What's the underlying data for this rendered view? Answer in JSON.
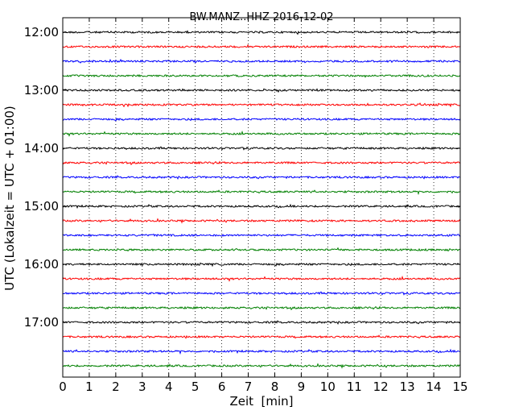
{
  "chart_data": {
    "type": "line",
    "title": "BW.MANZ..HHZ 2016-12-02",
    "xlabel": "Zeit  [min]",
    "ylabel": "UTC (Lokalzeit = UTC + 01:00)",
    "xlim": [
      0,
      15
    ],
    "x_ticks": [
      "0",
      "1",
      "2",
      "3",
      "4",
      "5",
      "6",
      "7",
      "8",
      "9",
      "10",
      "11",
      "12",
      "13",
      "14",
      "15"
    ],
    "y_ticks": [
      "12:00",
      "13:00",
      "14:00",
      "15:00",
      "16:00",
      "17:00"
    ],
    "grid": "vertical dotted",
    "trace_start_times": [
      "12:00",
      "12:15",
      "12:30",
      "12:45",
      "13:00",
      "13:15",
      "13:30",
      "13:45",
      "14:00",
      "14:15",
      "14:30",
      "14:45",
      "15:00",
      "15:15",
      "15:30",
      "15:45",
      "16:00",
      "16:15",
      "16:30",
      "16:45",
      "17:00",
      "17:15",
      "17:30",
      "17:45"
    ],
    "trace_colors": [
      "#000000",
      "#ff0000",
      "#0000ff",
      "#008000"
    ]
  }
}
